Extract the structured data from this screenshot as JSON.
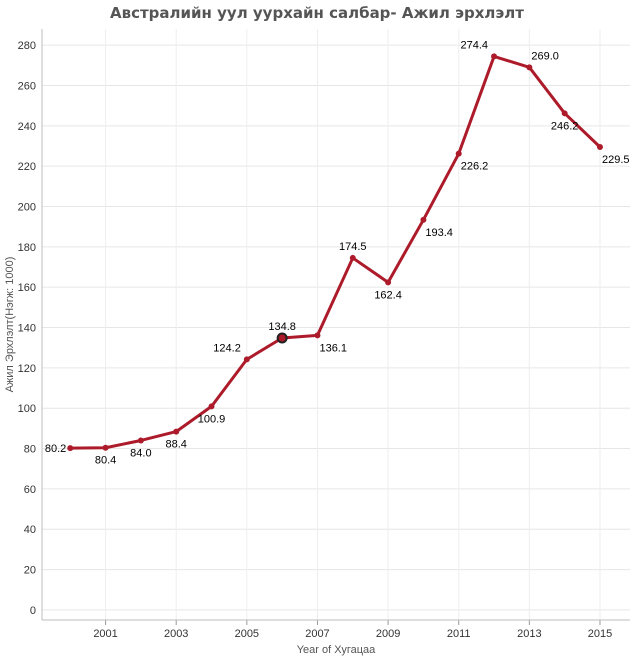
{
  "chart_data": {
    "type": "line",
    "title": "Австралийн уул уурхайн салбар- Ажил эрхлэлт",
    "xlabel": "Year of Хугацаа",
    "ylabel": "Ажил Эрхлэлт(Нэгж: 1000)",
    "x": [
      2000,
      2001,
      2002,
      2003,
      2004,
      2005,
      2006,
      2007,
      2008,
      2009,
      2010,
      2011,
      2012,
      2013,
      2014,
      2015
    ],
    "x_tick_labels": [
      "2001",
      "2003",
      "2005",
      "2007",
      "2009",
      "2011",
      "2013",
      "2015"
    ],
    "y_ticks": [
      0,
      20,
      40,
      60,
      80,
      100,
      120,
      140,
      160,
      180,
      200,
      220,
      240,
      260,
      280
    ],
    "ylim": [
      -5,
      288
    ],
    "xlim": [
      1999.2,
      2015.85
    ],
    "grid": true,
    "highlighted_index": 6,
    "series": [
      {
        "values": [
          80.2,
          80.4,
          84.0,
          88.4,
          100.9,
          124.2,
          134.8,
          136.1,
          174.5,
          162.4,
          193.4,
          226.2,
          274.4,
          269.0,
          246.2,
          229.5
        ],
        "labels": [
          "80.2",
          "80.4",
          "84.0",
          "88.4",
          "100.9",
          "124.2",
          "134.8",
          "136.1",
          "174.5",
          "162.4",
          "193.4",
          "226.2",
          "274.4",
          "269.0",
          "246.2",
          "229.5"
        ],
        "label_positions": [
          "left",
          "below",
          "below",
          "below",
          "below",
          "above-left",
          "above",
          "below-right",
          "above",
          "below",
          "below-right",
          "below-right",
          "above-left",
          "above-right",
          "below",
          "below-right"
        ],
        "color": "#ad1b2b"
      }
    ]
  }
}
